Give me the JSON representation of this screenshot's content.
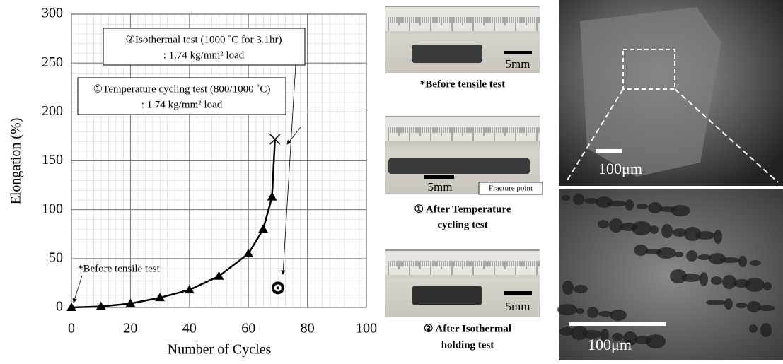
{
  "chart_data": {
    "type": "line",
    "x_label": "Number of Cycles",
    "y_label": "Elongation (%)",
    "xlim": [
      0,
      100
    ],
    "ylim": [
      0,
      300
    ],
    "xticks": [
      0,
      20,
      40,
      60,
      80,
      100
    ],
    "yticks": [
      0,
      50,
      100,
      150,
      200,
      250,
      300
    ],
    "grid": true,
    "series": [
      {
        "color": "#000000",
        "x": [
          0,
          10,
          20,
          30,
          40,
          50,
          60,
          65,
          68,
          69
        ],
        "values": [
          0,
          1,
          4,
          10,
          18,
          32,
          55,
          80,
          113,
          172
        ],
        "markers": [
          "triangle",
          "triangle",
          "triangle",
          "triangle",
          "triangle",
          "triangle",
          "triangle",
          "triangle",
          "triangle",
          "cross"
        ],
        "line": true
      },
      {
        "color": "#000000",
        "x": [
          70
        ],
        "values": [
          20
        ],
        "markers": [
          "bullseye"
        ],
        "line": false
      }
    ],
    "annotations": {
      "isothermal": [
        "②Isothermal test (1000 ˚C for 3.1hr)",
        ": 1.74 kg/mm² load"
      ],
      "cycling": [
        "①Temperature cycling test (800/1000 ˚C)",
        ": 1.74 kg/mm² load"
      ],
      "before": "*Before tensile test"
    }
  },
  "photos": {
    "before": {
      "scale": "5mm",
      "caption": [
        "*Before tensile test"
      ]
    },
    "cycling": {
      "scale": "5mm",
      "label": "Fracture point",
      "caption": [
        "① After Temperature",
        "cycling test"
      ]
    },
    "isothermal": {
      "scale": "5mm",
      "caption": [
        "② After Isothermal",
        "holding test"
      ]
    }
  },
  "sem": {
    "top_scale": "100μm",
    "bottom_scale": "100μm"
  }
}
